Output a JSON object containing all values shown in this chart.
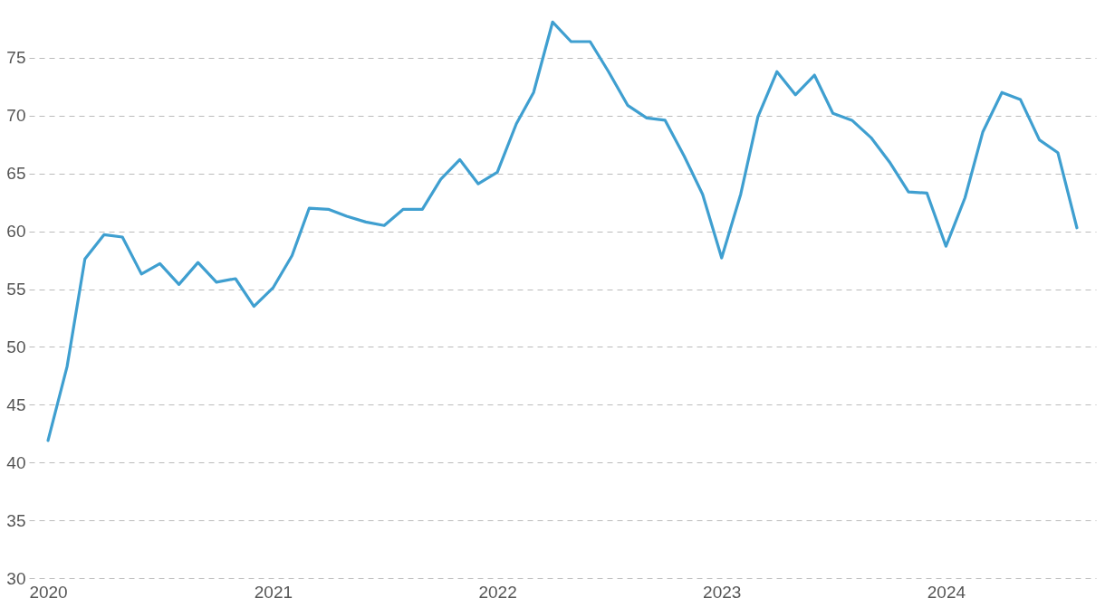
{
  "chart_data": {
    "type": "line",
    "x": [
      "2020-01",
      "2020-02",
      "2020-03",
      "2020-04",
      "2020-05",
      "2020-06",
      "2020-07",
      "2020-08",
      "2020-09",
      "2020-10",
      "2020-11",
      "2020-12",
      "2021-01",
      "2021-02",
      "2021-03",
      "2021-04",
      "2021-05",
      "2021-06",
      "2021-07",
      "2021-08",
      "2021-09",
      "2021-10",
      "2021-11",
      "2021-12",
      "2022-01",
      "2022-02",
      "2022-03",
      "2022-04",
      "2022-05",
      "2022-06",
      "2022-07",
      "2022-08",
      "2022-09",
      "2022-10",
      "2022-11",
      "2022-12",
      "2023-01",
      "2023-02",
      "2023-03",
      "2023-04",
      "2023-05",
      "2023-06",
      "2023-07",
      "2023-08",
      "2023-09",
      "2023-10",
      "2023-11",
      "2023-12",
      "2024-01",
      "2024-02",
      "2024-03",
      "2024-04",
      "2024-05",
      "2024-06",
      "2024-07",
      "2024-08"
    ],
    "series": [
      {
        "color": "#3f9fd0",
        "values": [
          41.9,
          48.3,
          57.6,
          59.7,
          59.5,
          56.3,
          57.2,
          55.4,
          57.3,
          55.6,
          55.9,
          53.5,
          55.1,
          57.9,
          62.0,
          61.9,
          61.3,
          60.8,
          60.5,
          61.9,
          61.9,
          64.5,
          66.2,
          64.1,
          65.1,
          69.3,
          72.0,
          78.1,
          76.4,
          76.4,
          73.8,
          70.9,
          69.8,
          69.6,
          66.5,
          63.2,
          57.7,
          63.2,
          69.9,
          73.8,
          71.8,
          73.5,
          70.2,
          69.6,
          68.1,
          66.0,
          63.4,
          63.3,
          58.7,
          62.9,
          68.6,
          72.0,
          71.4,
          67.9,
          66.8,
          60.3
        ]
      }
    ],
    "xlim": [
      "2019-12",
      "2024-09"
    ],
    "xticks": [
      "2020",
      "2021",
      "2022",
      "2023",
      "2024"
    ],
    "ylim": [
      30,
      80
    ],
    "yticks": [
      30,
      35,
      40,
      45,
      50,
      55,
      60,
      65,
      70,
      75
    ],
    "grid": "y",
    "marker": "none",
    "line_style": "solid"
  }
}
